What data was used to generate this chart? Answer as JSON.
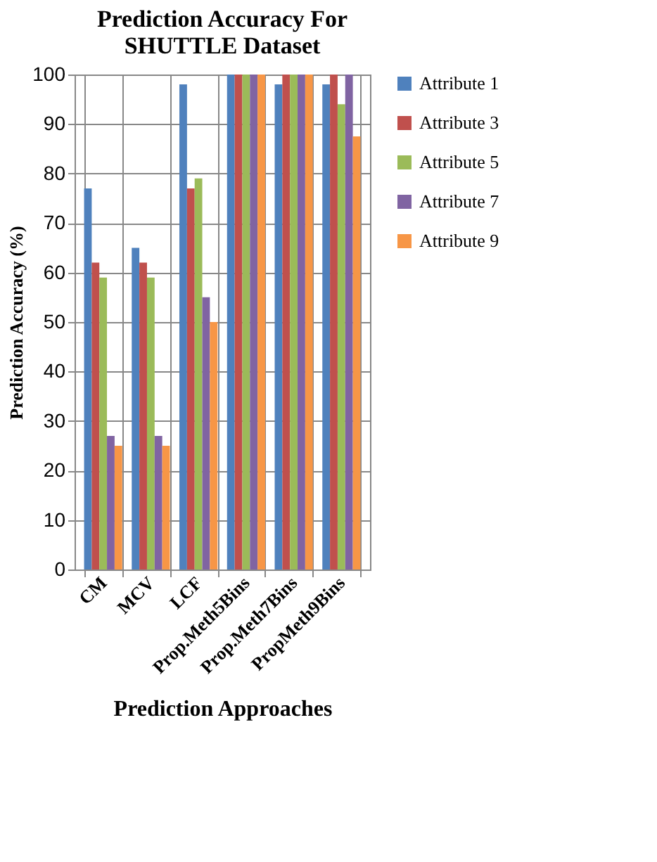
{
  "chart_data": {
    "type": "bar",
    "title": "Prediction Accuracy For SHUTTLE Dataset",
    "xlabel": "Prediction Approaches",
    "ylabel": "Prediction Accuracy (%)",
    "categories": [
      "CM",
      "MCV",
      "LCF",
      "Prop.Meth5Bins",
      "Prop.Meth7Bins",
      "PropMeth9Bins"
    ],
    "series": [
      {
        "name": "Attribute 1",
        "color": "#4f81bd",
        "values": [
          77,
          65,
          98,
          100,
          98,
          98
        ]
      },
      {
        "name": "Attribute 3",
        "color": "#c0504d",
        "values": [
          62,
          62,
          77,
          100,
          100,
          100
        ]
      },
      {
        "name": "Attribute 5",
        "color": "#9bbb59",
        "values": [
          59,
          59,
          79,
          100,
          100,
          94
        ]
      },
      {
        "name": "Attribute 7",
        "color": "#8064a2",
        "values": [
          27,
          27,
          55,
          100,
          100,
          100
        ]
      },
      {
        "name": "Attribute 9",
        "color": "#f79646",
        "values": [
          25,
          25,
          50,
          100,
          100,
          87.5
        ]
      }
    ],
    "ylim": [
      0,
      100
    ],
    "yticks": [
      0,
      10,
      20,
      30,
      40,
      50,
      60,
      70,
      80,
      90,
      100
    ],
    "grid": true,
    "legend": "right"
  }
}
